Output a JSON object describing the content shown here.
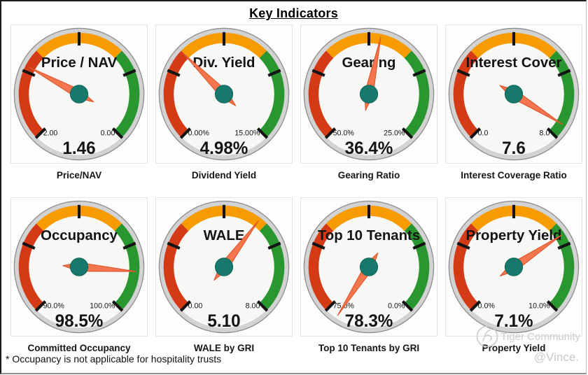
{
  "title": "Key Indicators",
  "footnote": "* Occupancy is not applicable for hospitality trusts",
  "watermark": {
    "brand": "Tiger Community",
    "handle": "@Vince."
  },
  "colors": {
    "band_red": "#d43a16",
    "band_orange": "#f79b00",
    "band_green": "#2a9630",
    "needle": "#f4764e",
    "needle_edge": "#e0562d",
    "hub": "#17786c",
    "hub_edge": "#0e6558",
    "ring": "#d3d3d3",
    "ring_edge": "#8f8f8f",
    "face": "#f7f7f5",
    "tick": "#141414",
    "text": "#141414"
  },
  "chart_data": {
    "type": "gauge",
    "title": "Key Indicators",
    "sweep_degrees": 270,
    "band_order": [
      "red",
      "orange",
      "green"
    ],
    "band_fractions": [
      0.3333,
      0.3333,
      0.3333
    ],
    "gauges": [
      {
        "dial_title": "Price / NAV",
        "caption": "Price/NAV",
        "value": 1.46,
        "display_value": "1.46",
        "scale_start": 2.0,
        "scale_end": 0.0,
        "scale_start_label": "2.00",
        "scale_end_label": "0.00"
      },
      {
        "dial_title": "Div. Yield",
        "caption": "Dividend Yield",
        "value": 4.98,
        "display_value": "4.98%",
        "scale_start": 0.0,
        "scale_end": 15.0,
        "scale_start_label": "0.00%",
        "scale_end_label": "15.00%"
      },
      {
        "dial_title": "Gearing",
        "caption": "Gearing Ratio",
        "value": 36.4,
        "display_value": "36.4%",
        "scale_start": 50.0,
        "scale_end": 25.0,
        "scale_start_label": "50.0%",
        "scale_end_label": "25.0%"
      },
      {
        "dial_title": "Interest Cover",
        "caption": "Interest Coverage Ratio",
        "value": 7.6,
        "display_value": "7.6",
        "scale_start": 0.0,
        "scale_end": 8.0,
        "scale_start_label": "0.0",
        "scale_end_label": "8.0"
      },
      {
        "dial_title": "Occupancy",
        "caption": "Committed Occupancy",
        "value": 98.5,
        "display_value": "98.5%",
        "scale_start": 90.0,
        "scale_end": 100.0,
        "scale_start_label": "90.0%",
        "scale_end_label": "100.0%"
      },
      {
        "dial_title": "WALE",
        "caption": "WALE by GRI",
        "value": 5.1,
        "display_value": "5.10",
        "scale_start": 0.0,
        "scale_end": 8.0,
        "scale_start_label": "0.00",
        "scale_end_label": "8.00"
      },
      {
        "dial_title": "Top 10 Tenants",
        "caption": "Top 10 Tenants by GRI",
        "value": 78.3,
        "display_value": "78.3%",
        "scale_start": 75.0,
        "scale_end": 0.0,
        "scale_start_label": "75.0%",
        "scale_end_label": "0.0%"
      },
      {
        "dial_title": "Property Yield",
        "caption": "Property Yield",
        "value": 7.1,
        "display_value": "7.1%",
        "scale_start": 0.0,
        "scale_end": 10.0,
        "scale_start_label": "0.0%",
        "scale_end_label": "10.0%"
      }
    ]
  }
}
